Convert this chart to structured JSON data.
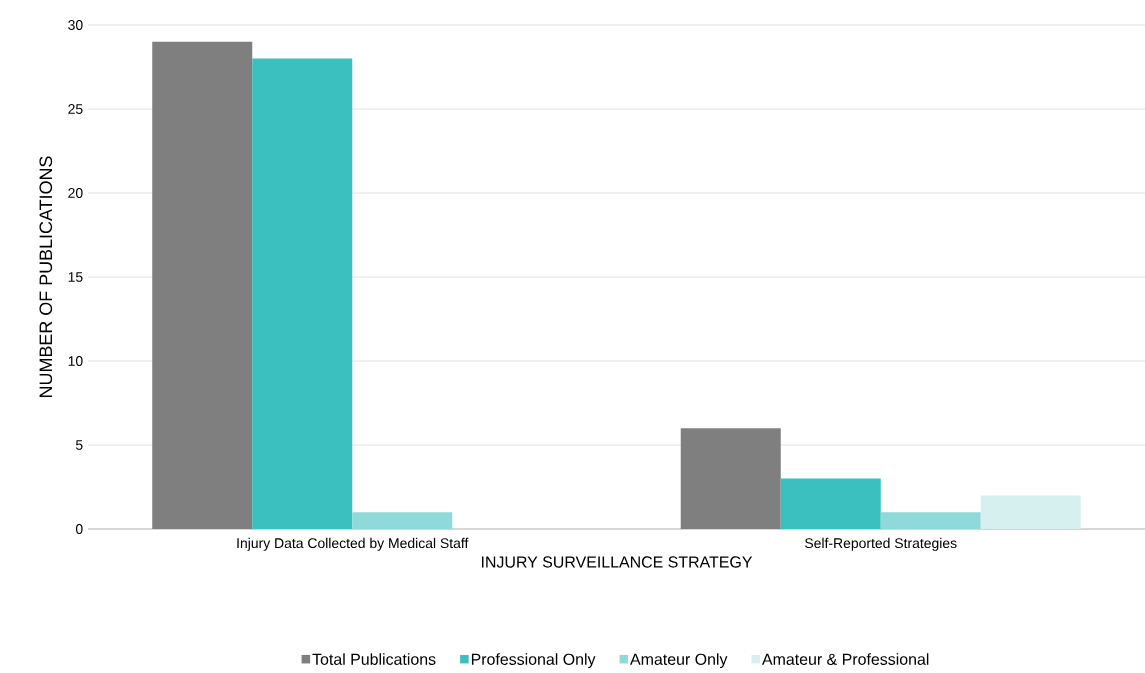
{
  "chart_data": {
    "type": "bar",
    "xlabel": "INJURY SURVEILLANCE STRATEGY",
    "ylabel": "NUMBER OF PUBLICATIONS",
    "categories": [
      "Injury Data Collected by Medical Staff",
      "Self-Reported Strategies"
    ],
    "series": [
      {
        "name": "Total Publications",
        "color": "#7f7f7f",
        "values": [
          29,
          6
        ]
      },
      {
        "name": "Professional Only",
        "color": "#3bbfbf",
        "values": [
          28,
          3
        ]
      },
      {
        "name": "Amateur Only",
        "color": "#8ed9d9",
        "values": [
          1,
          1
        ]
      },
      {
        "name": "Amateur & Professional",
        "color": "#d6f0f0",
        "values": [
          0,
          2
        ]
      }
    ],
    "ylim": [
      0,
      30
    ],
    "yticks": [
      0,
      5,
      10,
      15,
      20,
      25,
      30
    ],
    "grid": "y",
    "legend": "bottom"
  }
}
